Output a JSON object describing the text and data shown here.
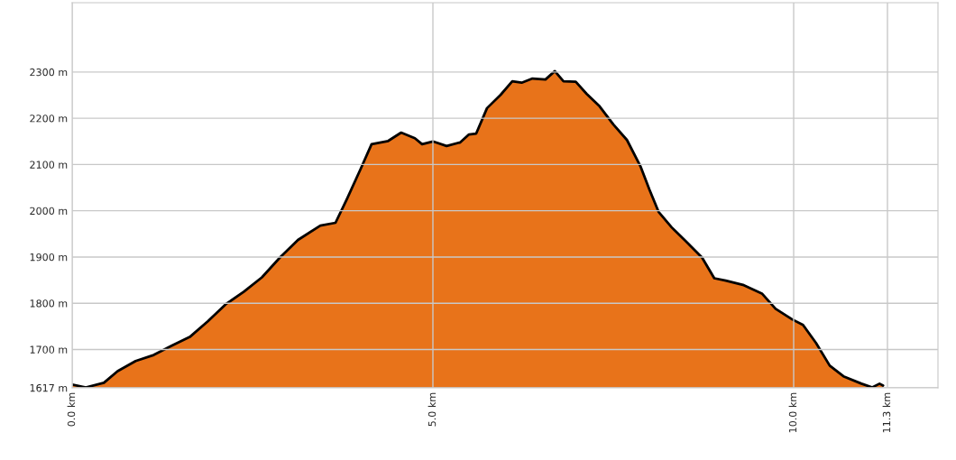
{
  "chart_data": {
    "type": "area",
    "x": [
      0,
      0.19,
      0.44,
      0.63,
      0.88,
      1.13,
      1.38,
      1.63,
      1.88,
      2.13,
      2.38,
      2.63,
      2.88,
      3.13,
      3.44,
      3.65,
      3.81,
      4.0,
      4.15,
      4.38,
      4.56,
      4.75,
      4.85,
      5.0,
      5.19,
      5.38,
      5.5,
      5.6,
      5.75,
      5.94,
      6.1,
      6.23,
      6.38,
      6.56,
      6.69,
      6.81,
      6.98,
      7.13,
      7.31,
      7.5,
      7.69,
      7.88,
      8.0,
      8.13,
      8.31,
      8.5,
      8.73,
      8.9,
      9.06,
      9.31,
      9.56,
      9.75,
      9.98,
      10.13,
      10.31,
      10.5,
      10.69,
      10.94,
      11.09,
      11.19,
      11.24
    ],
    "series": [
      {
        "color": "#e8731a",
        "values": [
          1624,
          1618,
          1628,
          1653,
          1675,
          1688,
          1708,
          1727,
          1761,
          1798,
          1825,
          1856,
          1899,
          1937,
          1968,
          1974,
          2026,
          2091,
          2144,
          2151,
          2169,
          2157,
          2144,
          2150,
          2140,
          2148,
          2165,
          2167,
          2222,
          2251,
          2280,
          2277,
          2286,
          2284,
          2302,
          2280,
          2279,
          2253,
          2226,
          2187,
          2153,
          2095,
          2046,
          1997,
          1964,
          1935,
          1899,
          1854,
          1849,
          1839,
          1821,
          1788,
          1765,
          1753,
          1714,
          1665,
          1642,
          1626,
          1618,
          1626,
          1622
        ]
      }
    ],
    "xlim": [
      0,
      12.0
    ],
    "xticks": [
      {
        "value": 0,
        "label": "0.0 km"
      },
      {
        "value": 5,
        "label": "5.0 km"
      },
      {
        "value": 10,
        "label": "10.0 km"
      },
      {
        "value": 11.3,
        "label": "11.3 km"
      }
    ],
    "ylim": [
      1617,
      2450
    ],
    "yticks": [
      {
        "value": 1617,
        "label": "1617 m"
      },
      {
        "value": 1700,
        "label": "1700 m"
      },
      {
        "value": 1800,
        "label": "1800 m"
      },
      {
        "value": 1900,
        "label": "1900 m"
      },
      {
        "value": 2000,
        "label": "2000 m"
      },
      {
        "value": 2100,
        "label": "2100 m"
      },
      {
        "value": 2200,
        "label": "2200 m"
      },
      {
        "value": 2300,
        "label": "2300 m"
      }
    ],
    "grid": true
  }
}
